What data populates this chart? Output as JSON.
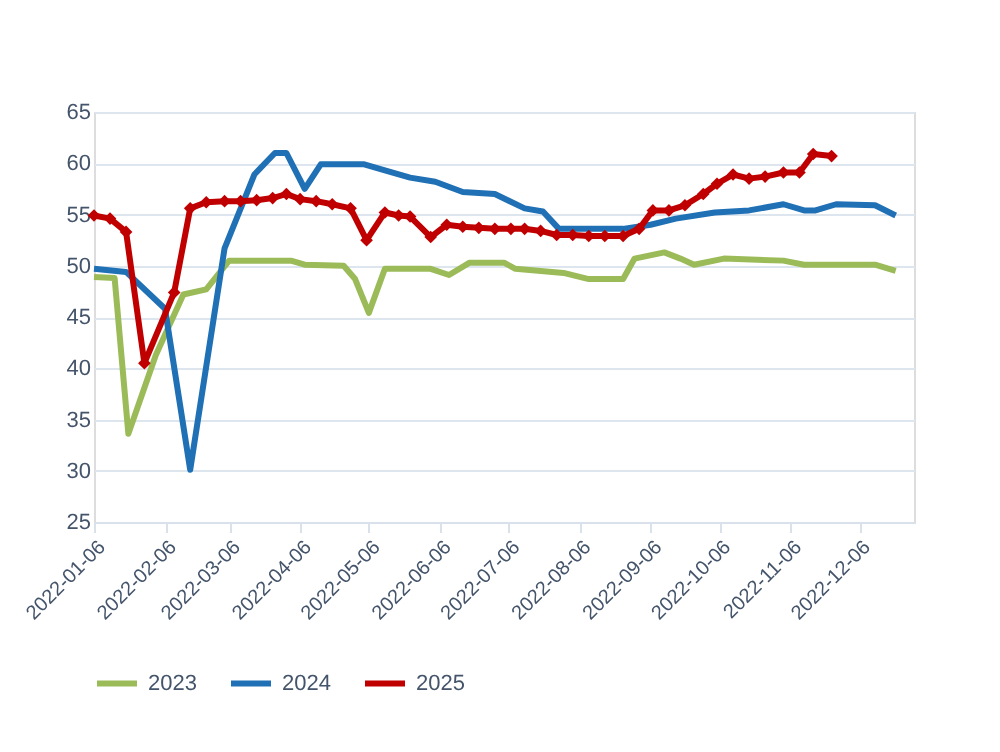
{
  "chart_data": {
    "type": "line",
    "xlim": [
      "2022-01-06",
      "2022-12-30"
    ],
    "xticks": [
      "2022-01-06",
      "2022-02-06",
      "2022-03-06",
      "2022-04-06",
      "2022-05-06",
      "2022-06-06",
      "2022-07-06",
      "2022-08-06",
      "2022-09-06",
      "2022-10-06",
      "2022-11-06",
      "2022-12-06"
    ],
    "ylim": [
      25,
      65
    ],
    "yticks": [
      25,
      30,
      35,
      40,
      45,
      50,
      55,
      60,
      65
    ],
    "grid": "y",
    "legend": "bottom",
    "line_style": "solid",
    "series": [
      {
        "name": "2023",
        "color": "#9bbb59",
        "marker": "none",
        "x": [
          "2022-01-06",
          "2022-01-15",
          "2022-01-21",
          "2022-02-02",
          "2022-02-14",
          "2022-02-24",
          "2022-03-06",
          "2022-04-02",
          "2022-04-08",
          "2022-04-25",
          "2022-04-30",
          "2022-05-06",
          "2022-05-13",
          "2022-06-02",
          "2022-06-10",
          "2022-06-19",
          "2022-07-04",
          "2022-07-09",
          "2022-07-30",
          "2022-08-10",
          "2022-08-25",
          "2022-08-30",
          "2022-09-12",
          "2022-09-19",
          "2022-09-25",
          "2022-10-08",
          "2022-11-03",
          "2022-11-12",
          "2022-12-02",
          "2022-12-13",
          "2022-12-22"
        ],
        "values": [
          48.9,
          48.8,
          33.6,
          41.3,
          47.2,
          47.7,
          50.5,
          50.5,
          50.1,
          50.0,
          48.7,
          45.4,
          49.7,
          49.7,
          49.1,
          50.3,
          50.3,
          49.7,
          49.3,
          48.7,
          48.7,
          50.7,
          51.3,
          50.7,
          50.1,
          50.7,
          50.5,
          50.1,
          50.1,
          50.1,
          49.5
        ]
      },
      {
        "name": "2024",
        "color": "#1f70b5",
        "marker": "none",
        "x": [
          "2022-01-06",
          "2022-01-20",
          "2022-02-06",
          "2022-02-17",
          "2022-03-04",
          "2022-03-17",
          "2022-03-26",
          "2022-03-31",
          "2022-04-08",
          "2022-04-15",
          "2022-05-04",
          "2022-05-13",
          "2022-05-24",
          "2022-06-04",
          "2022-06-16",
          "2022-06-30",
          "2022-07-13",
          "2022-07-21",
          "2022-07-28",
          "2022-08-25",
          "2022-09-06",
          "2022-09-17",
          "2022-10-04",
          "2022-10-19",
          "2022-11-03",
          "2022-11-12",
          "2022-11-17",
          "2022-11-26",
          "2022-12-13",
          "2022-12-22"
        ],
        "values": [
          49.7,
          49.4,
          45.8,
          30.1,
          51.7,
          58.9,
          61.0,
          61.0,
          57.5,
          59.9,
          59.9,
          59.3,
          58.6,
          58.2,
          57.2,
          57.0,
          55.6,
          55.3,
          53.6,
          53.6,
          54.0,
          54.6,
          55.2,
          55.4,
          56.0,
          55.4,
          55.4,
          56.0,
          55.9,
          54.9
        ]
      },
      {
        "name": "2025",
        "color": "#c00000",
        "marker": "diamond",
        "x": [
          "2022-01-06",
          "2022-01-13",
          "2022-01-20",
          "2022-01-28",
          "2022-02-10",
          "2022-02-17",
          "2022-02-24",
          "2022-03-04",
          "2022-03-11",
          "2022-03-18",
          "2022-03-25",
          "2022-03-31",
          "2022-04-06",
          "2022-04-13",
          "2022-04-20",
          "2022-04-28",
          "2022-05-05",
          "2022-05-13",
          "2022-05-19",
          "2022-05-24",
          "2022-06-02",
          "2022-06-09",
          "2022-06-16",
          "2022-06-23",
          "2022-06-30",
          "2022-07-07",
          "2022-07-13",
          "2022-07-20",
          "2022-07-27",
          "2022-08-03",
          "2022-08-10",
          "2022-08-17",
          "2022-08-25",
          "2022-09-01",
          "2022-09-07",
          "2022-09-14",
          "2022-09-21",
          "2022-09-29",
          "2022-10-05",
          "2022-10-12",
          "2022-10-19",
          "2022-10-26",
          "2022-11-03",
          "2022-11-10",
          "2022-11-16",
          "2022-11-24"
        ],
        "values": [
          54.9,
          54.6,
          53.3,
          40.5,
          47.4,
          55.6,
          56.2,
          56.3,
          56.3,
          56.4,
          56.6,
          57.0,
          56.5,
          56.3,
          56.0,
          55.6,
          52.5,
          55.2,
          54.9,
          54.8,
          52.8,
          54.0,
          53.8,
          53.7,
          53.6,
          53.6,
          53.6,
          53.4,
          53.0,
          53.0,
          52.9,
          52.9,
          52.9,
          53.6,
          55.4,
          55.4,
          55.9,
          57.0,
          58.0,
          58.9,
          58.5,
          58.7,
          59.1,
          59.1,
          60.9,
          60.7
        ]
      }
    ]
  }
}
